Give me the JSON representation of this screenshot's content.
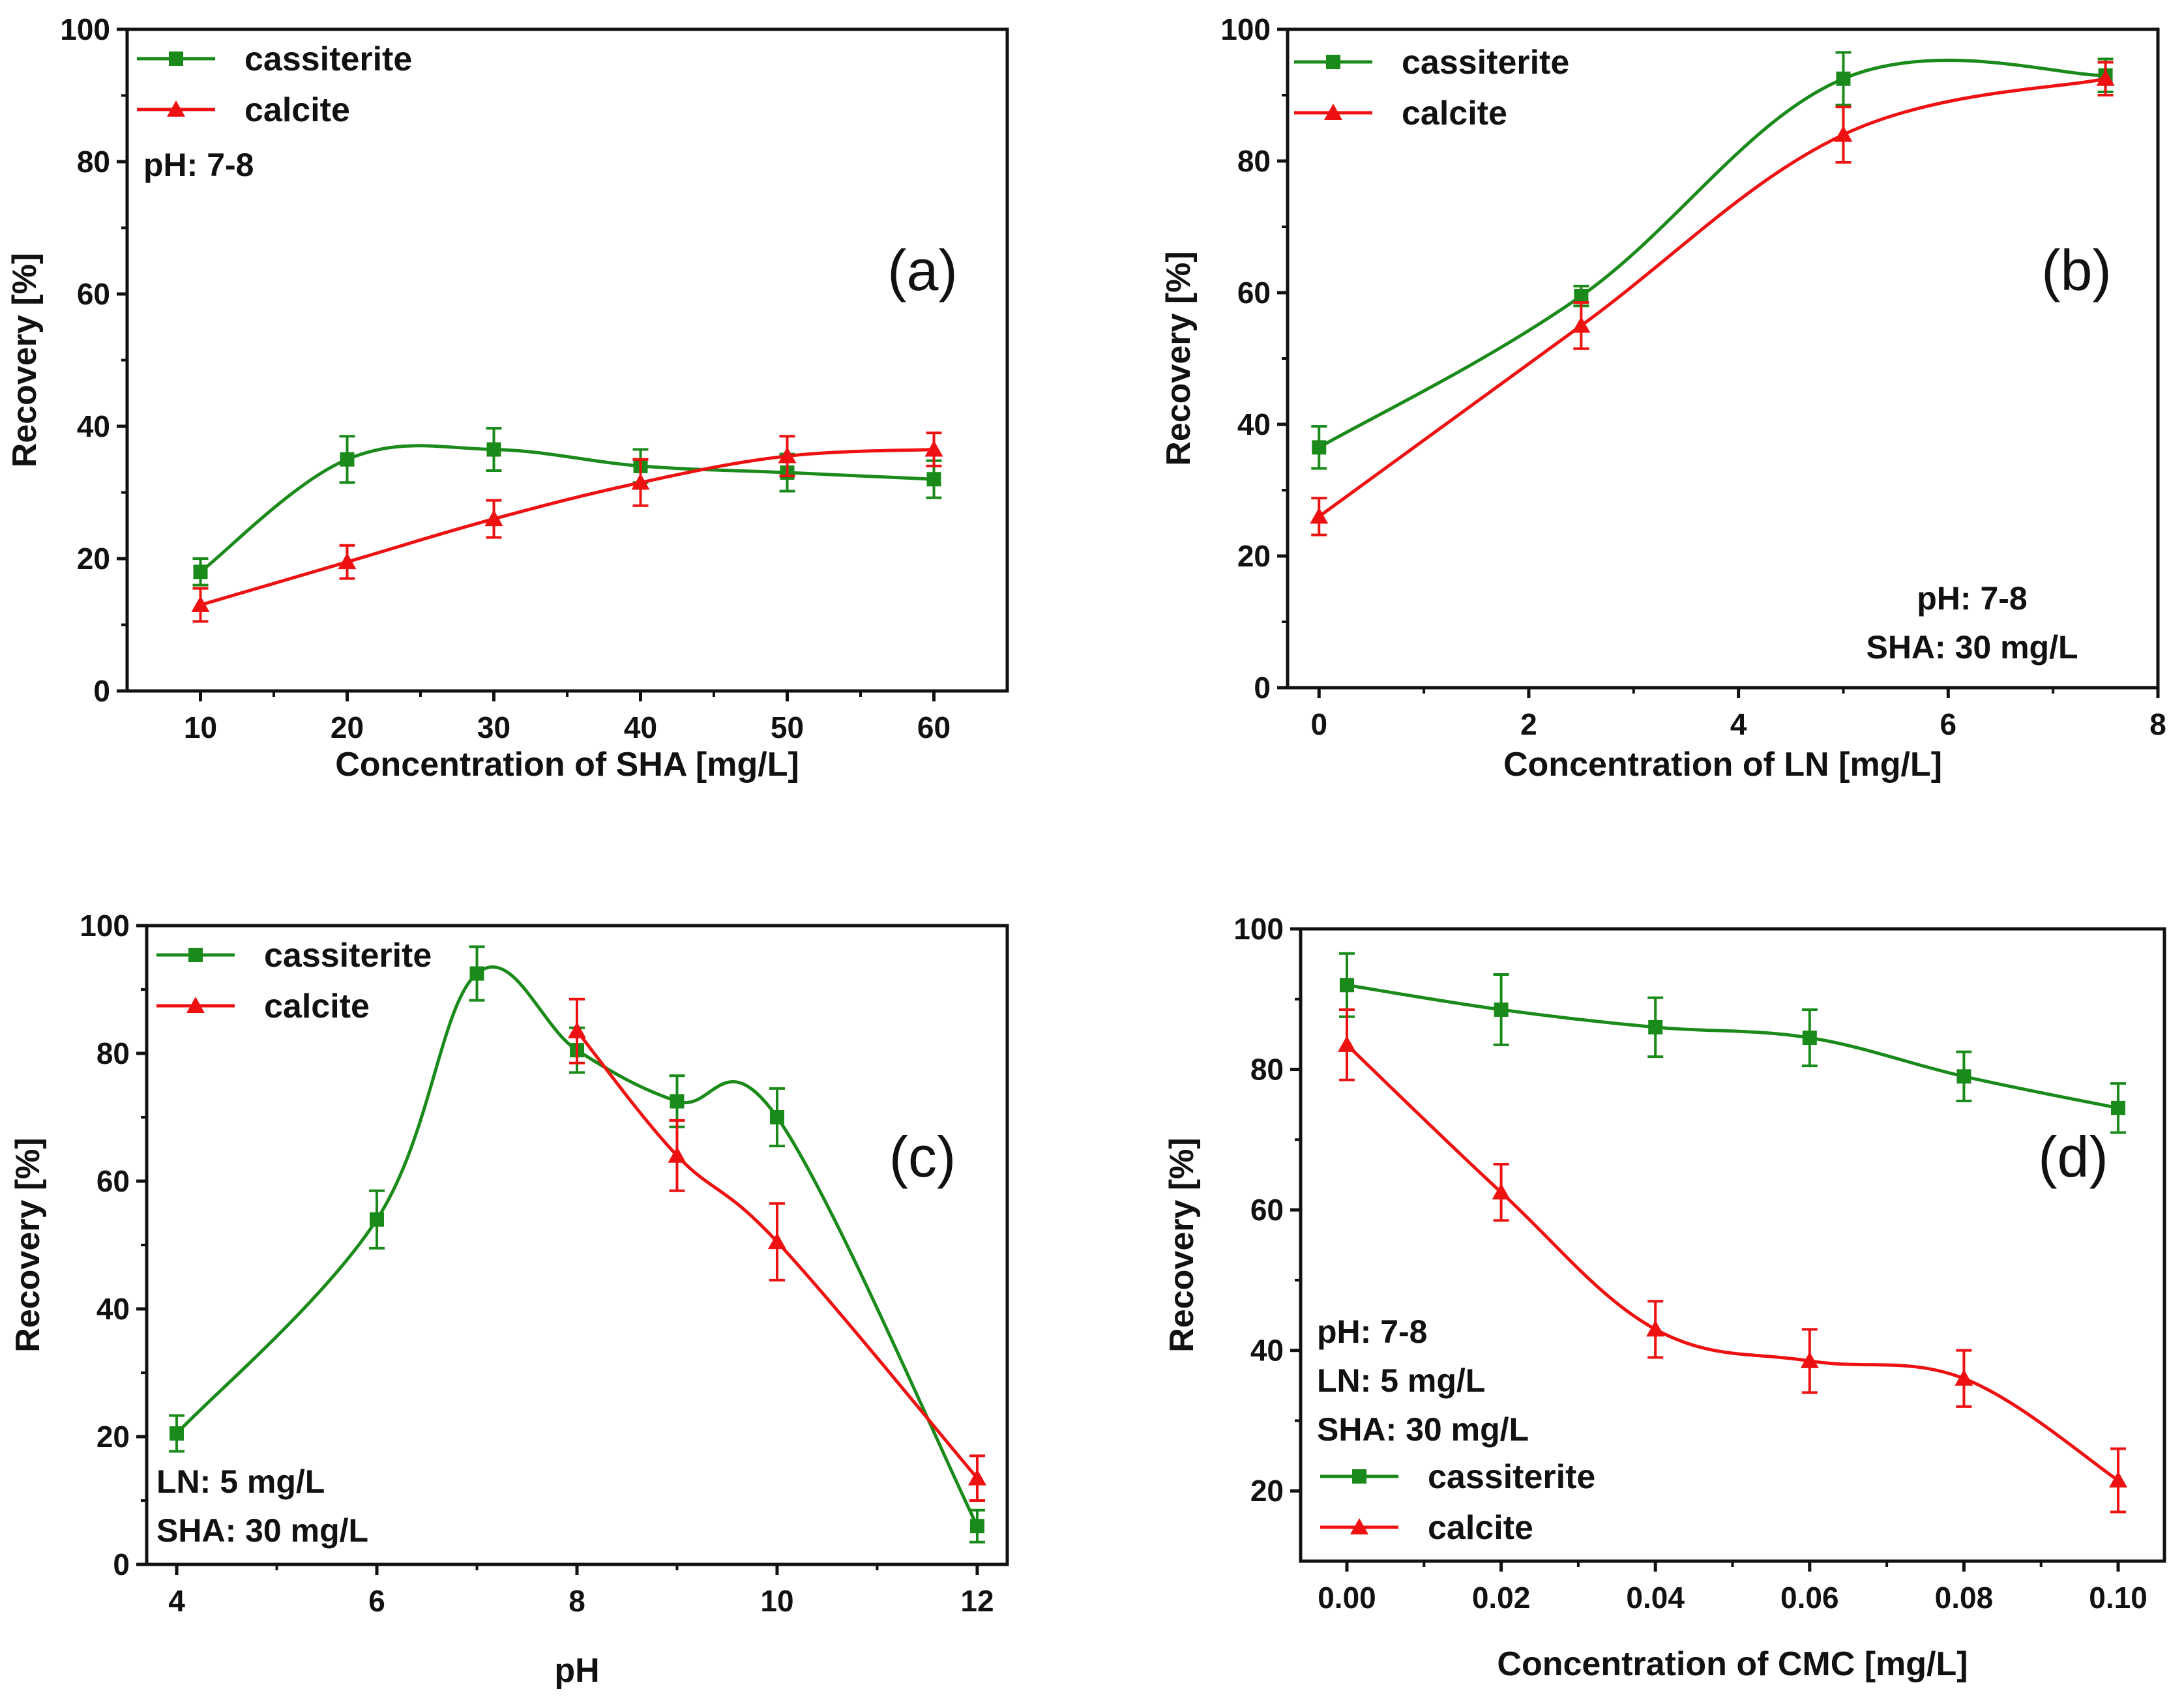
{
  "figure": {
    "colors": {
      "cassiterite": "#1a8a1a",
      "calcite": "#ee1111",
      "axis": "#111111"
    },
    "icons": {
      "cassiterite": "square-marker-icon",
      "calcite": "triangle-marker-icon"
    }
  },
  "chart_data": [
    {
      "type": "line",
      "panel_label": "(a)",
      "xlabel": "Concentration of SHA [mg/L]",
      "ylabel": "Recovery [%]",
      "xlim": [
        5,
        65
      ],
      "ylim": [
        0,
        100
      ],
      "x_ticks": [
        10,
        20,
        30,
        40,
        50,
        60
      ],
      "y_ticks": [
        0,
        20,
        40,
        60,
        80,
        100
      ],
      "legend": {
        "placement": "top-left",
        "entries": [
          "cassiterite",
          "calcite"
        ]
      },
      "annotations": [
        "pH: 7-8"
      ],
      "series": [
        {
          "name": "cassiterite",
          "x": [
            10,
            20,
            30,
            40,
            50,
            60
          ],
          "values": [
            18,
            35,
            36.5,
            34,
            33,
            32
          ],
          "errors": [
            2,
            3.5,
            3.2,
            2.5,
            2.8,
            2.8
          ]
        },
        {
          "name": "calcite",
          "x": [
            10,
            20,
            30,
            40,
            50,
            60
          ],
          "values": [
            13,
            19.5,
            26,
            31.5,
            35.5,
            36.5
          ],
          "errors": [
            2.5,
            2.5,
            2.8,
            3.5,
            3,
            2.5
          ]
        }
      ]
    },
    {
      "type": "line",
      "panel_label": "(b)",
      "xlabel": "Concentration of LN [mg/L]",
      "ylabel": "Recovery [%]",
      "xlim": [
        -0.3,
        8
      ],
      "ylim": [
        0,
        100
      ],
      "x_ticks": [
        0,
        2,
        4,
        6,
        8
      ],
      "y_ticks": [
        0,
        20,
        40,
        60,
        80,
        100
      ],
      "legend": {
        "placement": "top-left",
        "entries": [
          "cassiterite",
          "calcite"
        ]
      },
      "annotations": [
        "pH: 7-8",
        "SHA: 30 mg/L"
      ],
      "series": [
        {
          "name": "cassiterite",
          "x": [
            0,
            2.5,
            5,
            7.5
          ],
          "values": [
            36.5,
            59.5,
            92.5,
            93
          ],
          "errors": [
            3.2,
            1.5,
            4,
            2.5
          ]
        },
        {
          "name": "calcite",
          "x": [
            0,
            2.5,
            5,
            7.5
          ],
          "values": [
            26,
            55,
            84,
            92.5
          ],
          "errors": [
            2.8,
            3.5,
            4.2,
            2.5
          ]
        }
      ]
    },
    {
      "type": "line",
      "panel_label": "(c)",
      "xlabel": "pH",
      "ylabel": "Recovery [%]",
      "xlim": [
        3.7,
        12.3
      ],
      "ylim": [
        0,
        100
      ],
      "x_ticks": [
        4,
        6,
        8,
        10,
        12
      ],
      "y_ticks": [
        0,
        20,
        40,
        60,
        80,
        100
      ],
      "legend": {
        "placement": "top-left",
        "entries": [
          "cassiterite",
          "calcite"
        ]
      },
      "annotations": [
        "LN: 5 mg/L",
        "SHA: 30 mg/L"
      ],
      "series": [
        {
          "name": "cassiterite",
          "x": [
            4,
            6,
            7,
            8,
            9,
            10,
            12
          ],
          "values": [
            20.5,
            54,
            92.5,
            80.5,
            72.5,
            70,
            6
          ],
          "errors": [
            2.8,
            4.5,
            4.2,
            3.5,
            4,
            4.5,
            2.5
          ]
        },
        {
          "name": "calcite",
          "x": [
            8,
            9,
            10,
            12
          ],
          "values": [
            83.5,
            64,
            50.5,
            13.5
          ],
          "errors": [
            5,
            5.5,
            6,
            3.5
          ]
        }
      ]
    },
    {
      "type": "line",
      "panel_label": "(d)",
      "xlabel": "Concentration of CMC [mg/L]",
      "ylabel": "Recovery [%]",
      "xlim": [
        -0.006,
        0.106
      ],
      "ylim": [
        10,
        100
      ],
      "x_ticks": [
        "0.00",
        "0.02",
        "0.04",
        "0.06",
        "0.08",
        "0.10"
      ],
      "y_ticks": [
        20,
        40,
        60,
        80,
        100
      ],
      "legend": {
        "placement": "bottom-left",
        "entries": [
          "cassiterite",
          "calcite"
        ]
      },
      "annotations": [
        "pH: 7-8",
        "LN: 5 mg/L",
        "SHA: 30 mg/L"
      ],
      "series": [
        {
          "name": "cassiterite",
          "x": [
            0,
            0.02,
            0.04,
            0.06,
            0.08,
            0.1
          ],
          "values": [
            92,
            88.5,
            86,
            84.5,
            79,
            74.5
          ],
          "errors": [
            4.5,
            5,
            4.2,
            4,
            3.5,
            3.5
          ]
        },
        {
          "name": "calcite",
          "x": [
            0,
            0.02,
            0.04,
            0.06,
            0.08,
            0.1
          ],
          "values": [
            83.5,
            62.5,
            43,
            38.5,
            36,
            21.5
          ],
          "errors": [
            5,
            4,
            4,
            4.5,
            4,
            4.5
          ]
        }
      ]
    }
  ]
}
